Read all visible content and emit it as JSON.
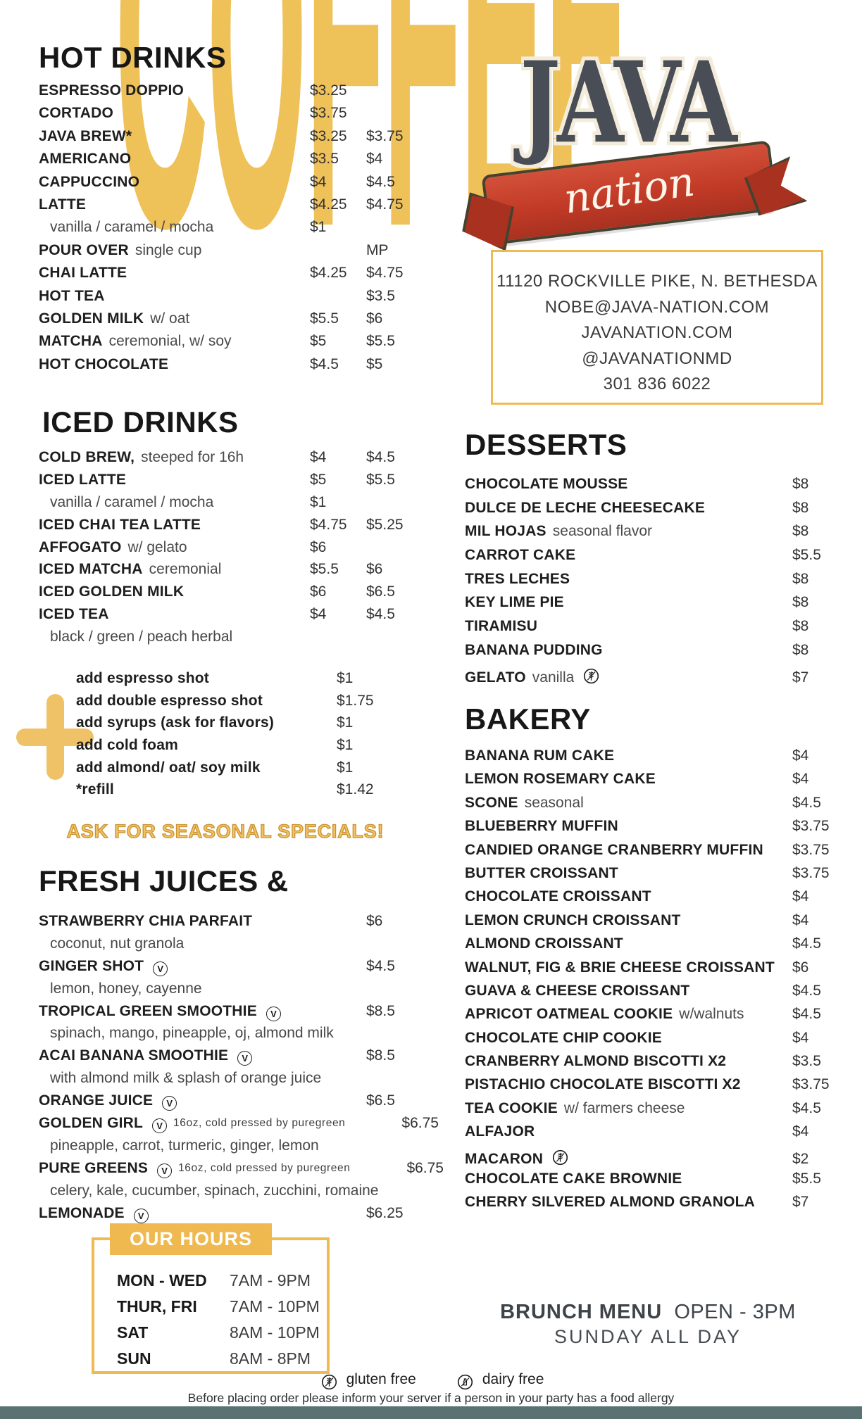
{
  "background_word": "COFFEE",
  "logo": {
    "word": "JAVA",
    "script": "nation"
  },
  "contact": {
    "lines": [
      "11120 ROCKVILLE PIKE, N. BETHESDA",
      "NOBE@JAVA-NATION.COM",
      "JAVANATION.COM",
      "@JAVANATIONMD",
      "301 836 6022"
    ]
  },
  "hot_drinks": {
    "title": "HOT DRINKS",
    "items": [
      {
        "name": "ESPRESSO DOPPIO",
        "prices": [
          "$3.25",
          ""
        ]
      },
      {
        "name": "CORTADO",
        "prices": [
          "$3.75",
          ""
        ]
      },
      {
        "name": "JAVA BREW*",
        "prices": [
          "$3.25",
          "$3.75"
        ]
      },
      {
        "name": "AMERICANO",
        "prices": [
          "$3.5",
          "$4"
        ]
      },
      {
        "name": "CAPPUCCINO",
        "prices": [
          "$4",
          "$4.5"
        ]
      },
      {
        "name": "LATTE",
        "prices": [
          "$4.25",
          "$4.75"
        ]
      },
      {
        "sub": true,
        "text": "vanilla / caramel / mocha",
        "prices": [
          "$1",
          ""
        ]
      },
      {
        "name": "POUR OVER",
        "desc": "single cup",
        "prices": [
          "",
          "MP"
        ]
      },
      {
        "name": "CHAI LATTE",
        "prices": [
          "$4.25",
          "$4.75"
        ]
      },
      {
        "name": "HOT TEA",
        "prices": [
          "",
          "$3.5"
        ]
      },
      {
        "name": "GOLDEN MILK",
        "desc": "w/ oat",
        "prices": [
          "$5.5",
          "$6"
        ]
      },
      {
        "name": "MATCHA",
        "desc": "ceremonial, w/ soy",
        "prices": [
          "$5",
          "$5.5"
        ]
      },
      {
        "name": "HOT CHOCOLATE",
        "prices": [
          "$4.5",
          "$5"
        ]
      }
    ]
  },
  "iced_drinks": {
    "title": "ICED DRINKS",
    "items": [
      {
        "name": "COLD BREW,",
        "desc": "steeped for 16h",
        "prices": [
          "$4",
          "$4.5"
        ]
      },
      {
        "name": "ICED LATTE",
        "prices": [
          "$5",
          "$5.5"
        ]
      },
      {
        "sub": true,
        "text": "vanilla / caramel / mocha",
        "prices": [
          "$1",
          ""
        ]
      },
      {
        "name": "ICED CHAI TEA LATTE",
        "prices": [
          "$4.75",
          "$5.25"
        ]
      },
      {
        "name": "AFFOGATO",
        "desc": "w/ gelato",
        "prices": [
          "$6",
          ""
        ]
      },
      {
        "name": "ICED MATCHA",
        "desc": "ceremonial",
        "prices": [
          "$5.5",
          "$6"
        ]
      },
      {
        "name": "ICED GOLDEN MILK",
        "prices": [
          "$6",
          "$6.5"
        ]
      },
      {
        "name": "ICED TEA",
        "prices": [
          "$4",
          "$4.5"
        ]
      },
      {
        "sub": true,
        "text": "black / green / peach herbal",
        "prices": [
          "",
          ""
        ]
      }
    ]
  },
  "addons": {
    "items": [
      {
        "name": "add espresso shot",
        "price": "$1"
      },
      {
        "name": "add double espresso shot",
        "price": "$1.75"
      },
      {
        "name": "add syrups (ask for flavors)",
        "price": "$1"
      },
      {
        "name": "add cold foam",
        "price": "$1"
      },
      {
        "name": "add almond/ oat/ soy milk",
        "price": "$1"
      },
      {
        "name": "*refill",
        "price": "$1.42"
      }
    ]
  },
  "seasonal_text": "ASK FOR SEASONAL SPECIALS!",
  "fresh_juices": {
    "title": "FRESH JUICES &",
    "items": [
      {
        "name": "STRAWBERRY CHIA PARFAIT",
        "prices": [
          "",
          "$6"
        ]
      },
      {
        "sub": true,
        "text": "coconut, nut granola",
        "prices": [
          "",
          ""
        ]
      },
      {
        "name": "GINGER SHOT",
        "icon": "vegan",
        "prices": [
          "",
          "$4.5"
        ]
      },
      {
        "sub": true,
        "text": "lemon, honey, cayenne",
        "prices": [
          "",
          ""
        ]
      },
      {
        "name": "TROPICAL GREEN SMOOTHIE",
        "icon": "vegan",
        "prices": [
          "",
          "$8.5"
        ]
      },
      {
        "sub": true,
        "text": "spinach, mango, pineapple, oj, almond milk",
        "prices": [
          "",
          ""
        ]
      },
      {
        "name": "ACAI BANANA SMOOTHIE",
        "icon": "vegan",
        "prices": [
          "",
          "$8.5"
        ]
      },
      {
        "sub": true,
        "text": "with almond milk & splash of orange juice",
        "prices": [
          "",
          ""
        ]
      },
      {
        "name": "ORANGE JUICE",
        "icon": "vegan",
        "prices": [
          "",
          "$6.5"
        ]
      },
      {
        "name": "GOLDEN GIRL",
        "icon": "vegan",
        "note": "16oz, cold pressed by puregreen",
        "prices": [
          "",
          "$6.75"
        ]
      },
      {
        "sub": true,
        "text": "pineapple, carrot, turmeric, ginger, lemon",
        "prices": [
          "",
          ""
        ]
      },
      {
        "name": "PURE GREENS",
        "icon": "vegan",
        "note": "16oz, cold pressed by puregreen",
        "prices": [
          "",
          "$6.75"
        ]
      },
      {
        "sub": true,
        "text": "celery, kale, cucumber, spinach, zucchini, romaine",
        "prices": [
          "",
          ""
        ]
      },
      {
        "name": "LEMONADE",
        "icon": "vegan",
        "prices": [
          "",
          "$6.25"
        ]
      }
    ]
  },
  "desserts": {
    "title": "DESSERTS",
    "items": [
      {
        "name": "CHOCOLATE MOUSSE",
        "price": "$8"
      },
      {
        "name": "DULCE DE LECHE CHEESECAKE",
        "price": "$8"
      },
      {
        "name": "MIL HOJAS",
        "desc": "seasonal flavor",
        "price": "$8"
      },
      {
        "name": "CARROT CAKE",
        "price": "$5.5"
      },
      {
        "name": "TRES LECHES",
        "price": "$8"
      },
      {
        "name": "KEY LIME PIE",
        "price": "$8"
      },
      {
        "name": "TIRAMISU",
        "price": "$8"
      },
      {
        "name": "BANANA PUDDING",
        "price": "$8"
      },
      {
        "name": "GELATO",
        "desc": "vanilla",
        "icon": "gf",
        "price": "$7"
      }
    ]
  },
  "bakery": {
    "title": "BAKERY",
    "items": [
      {
        "name": "BANANA RUM CAKE",
        "price": "$4"
      },
      {
        "name": "LEMON ROSEMARY CAKE",
        "price": "$4"
      },
      {
        "name": "SCONE",
        "desc": "seasonal",
        "price": "$4.5"
      },
      {
        "name": "BLUEBERRY MUFFIN",
        "price": "$3.75"
      },
      {
        "name": "CANDIED ORANGE CRANBERRY MUFFIN",
        "price": "$3.75"
      },
      {
        "name": "BUTTER CROISSANT",
        "price": "$3.75"
      },
      {
        "name": "CHOCOLATE CROISSANT",
        "price": "$4"
      },
      {
        "name": "LEMON CRUNCH CROISSANT",
        "price": "$4"
      },
      {
        "name": "ALMOND CROISSANT",
        "price": "$4.5"
      },
      {
        "name": "WALNUT, FIG & BRIE CHEESE CROISSANT",
        "price": "$6"
      },
      {
        "name": "GUAVA & CHEESE CROISSANT",
        "price": "$4.5"
      },
      {
        "name": "APRICOT OATMEAL COOKIE",
        "desc": "w/walnuts",
        "price": "$4.5"
      },
      {
        "name": "CHOCOLATE CHIP COOKIE",
        "price": "$4"
      },
      {
        "name": "CRANBERRY ALMOND BISCOTTI X2",
        "price": "$3.5"
      },
      {
        "name": "PISTACHIO CHOCOLATE BISCOTTI X2",
        "price": "$3.75"
      },
      {
        "name": "TEA COOKIE",
        "desc": "w/ farmers cheese",
        "price": "$4.5"
      },
      {
        "name": "ALFAJOR",
        "price": "$4"
      },
      {
        "name": "MACARON",
        "icon": "gf",
        "price": "$2"
      },
      {
        "name": "CHOCOLATE CAKE BROWNIE",
        "price": "$5.5"
      },
      {
        "name": "CHERRY SILVERED ALMOND GRANOLA",
        "price": "$7"
      }
    ]
  },
  "hours": {
    "title": "OUR HOURS",
    "rows": [
      {
        "days": "MON - WED",
        "time": "7AM - 9PM"
      },
      {
        "days": "THUR, FRI",
        "time": "7AM - 10PM"
      },
      {
        "days": "SAT",
        "time": "8AM - 10PM"
      },
      {
        "days": "SUN",
        "time": "8AM - 8PM"
      }
    ]
  },
  "brunch": {
    "title": "BRUNCH MENU",
    "open": "OPEN - 3PM",
    "line2": "SUNDAY ALL DAY"
  },
  "footer": {
    "gluten_label": "gluten free",
    "dairy_label": "dairy free",
    "allergy_note": "Before placing order please inform your server if a person in your party has a food allergy"
  },
  "colors": {
    "accent_yellow": "#EFBA50",
    "background_word_yellow": "#EFC159",
    "ribbon_red": "#C23B27",
    "logo_gray": "#494D56",
    "footer_bar": "#5A7272"
  }
}
